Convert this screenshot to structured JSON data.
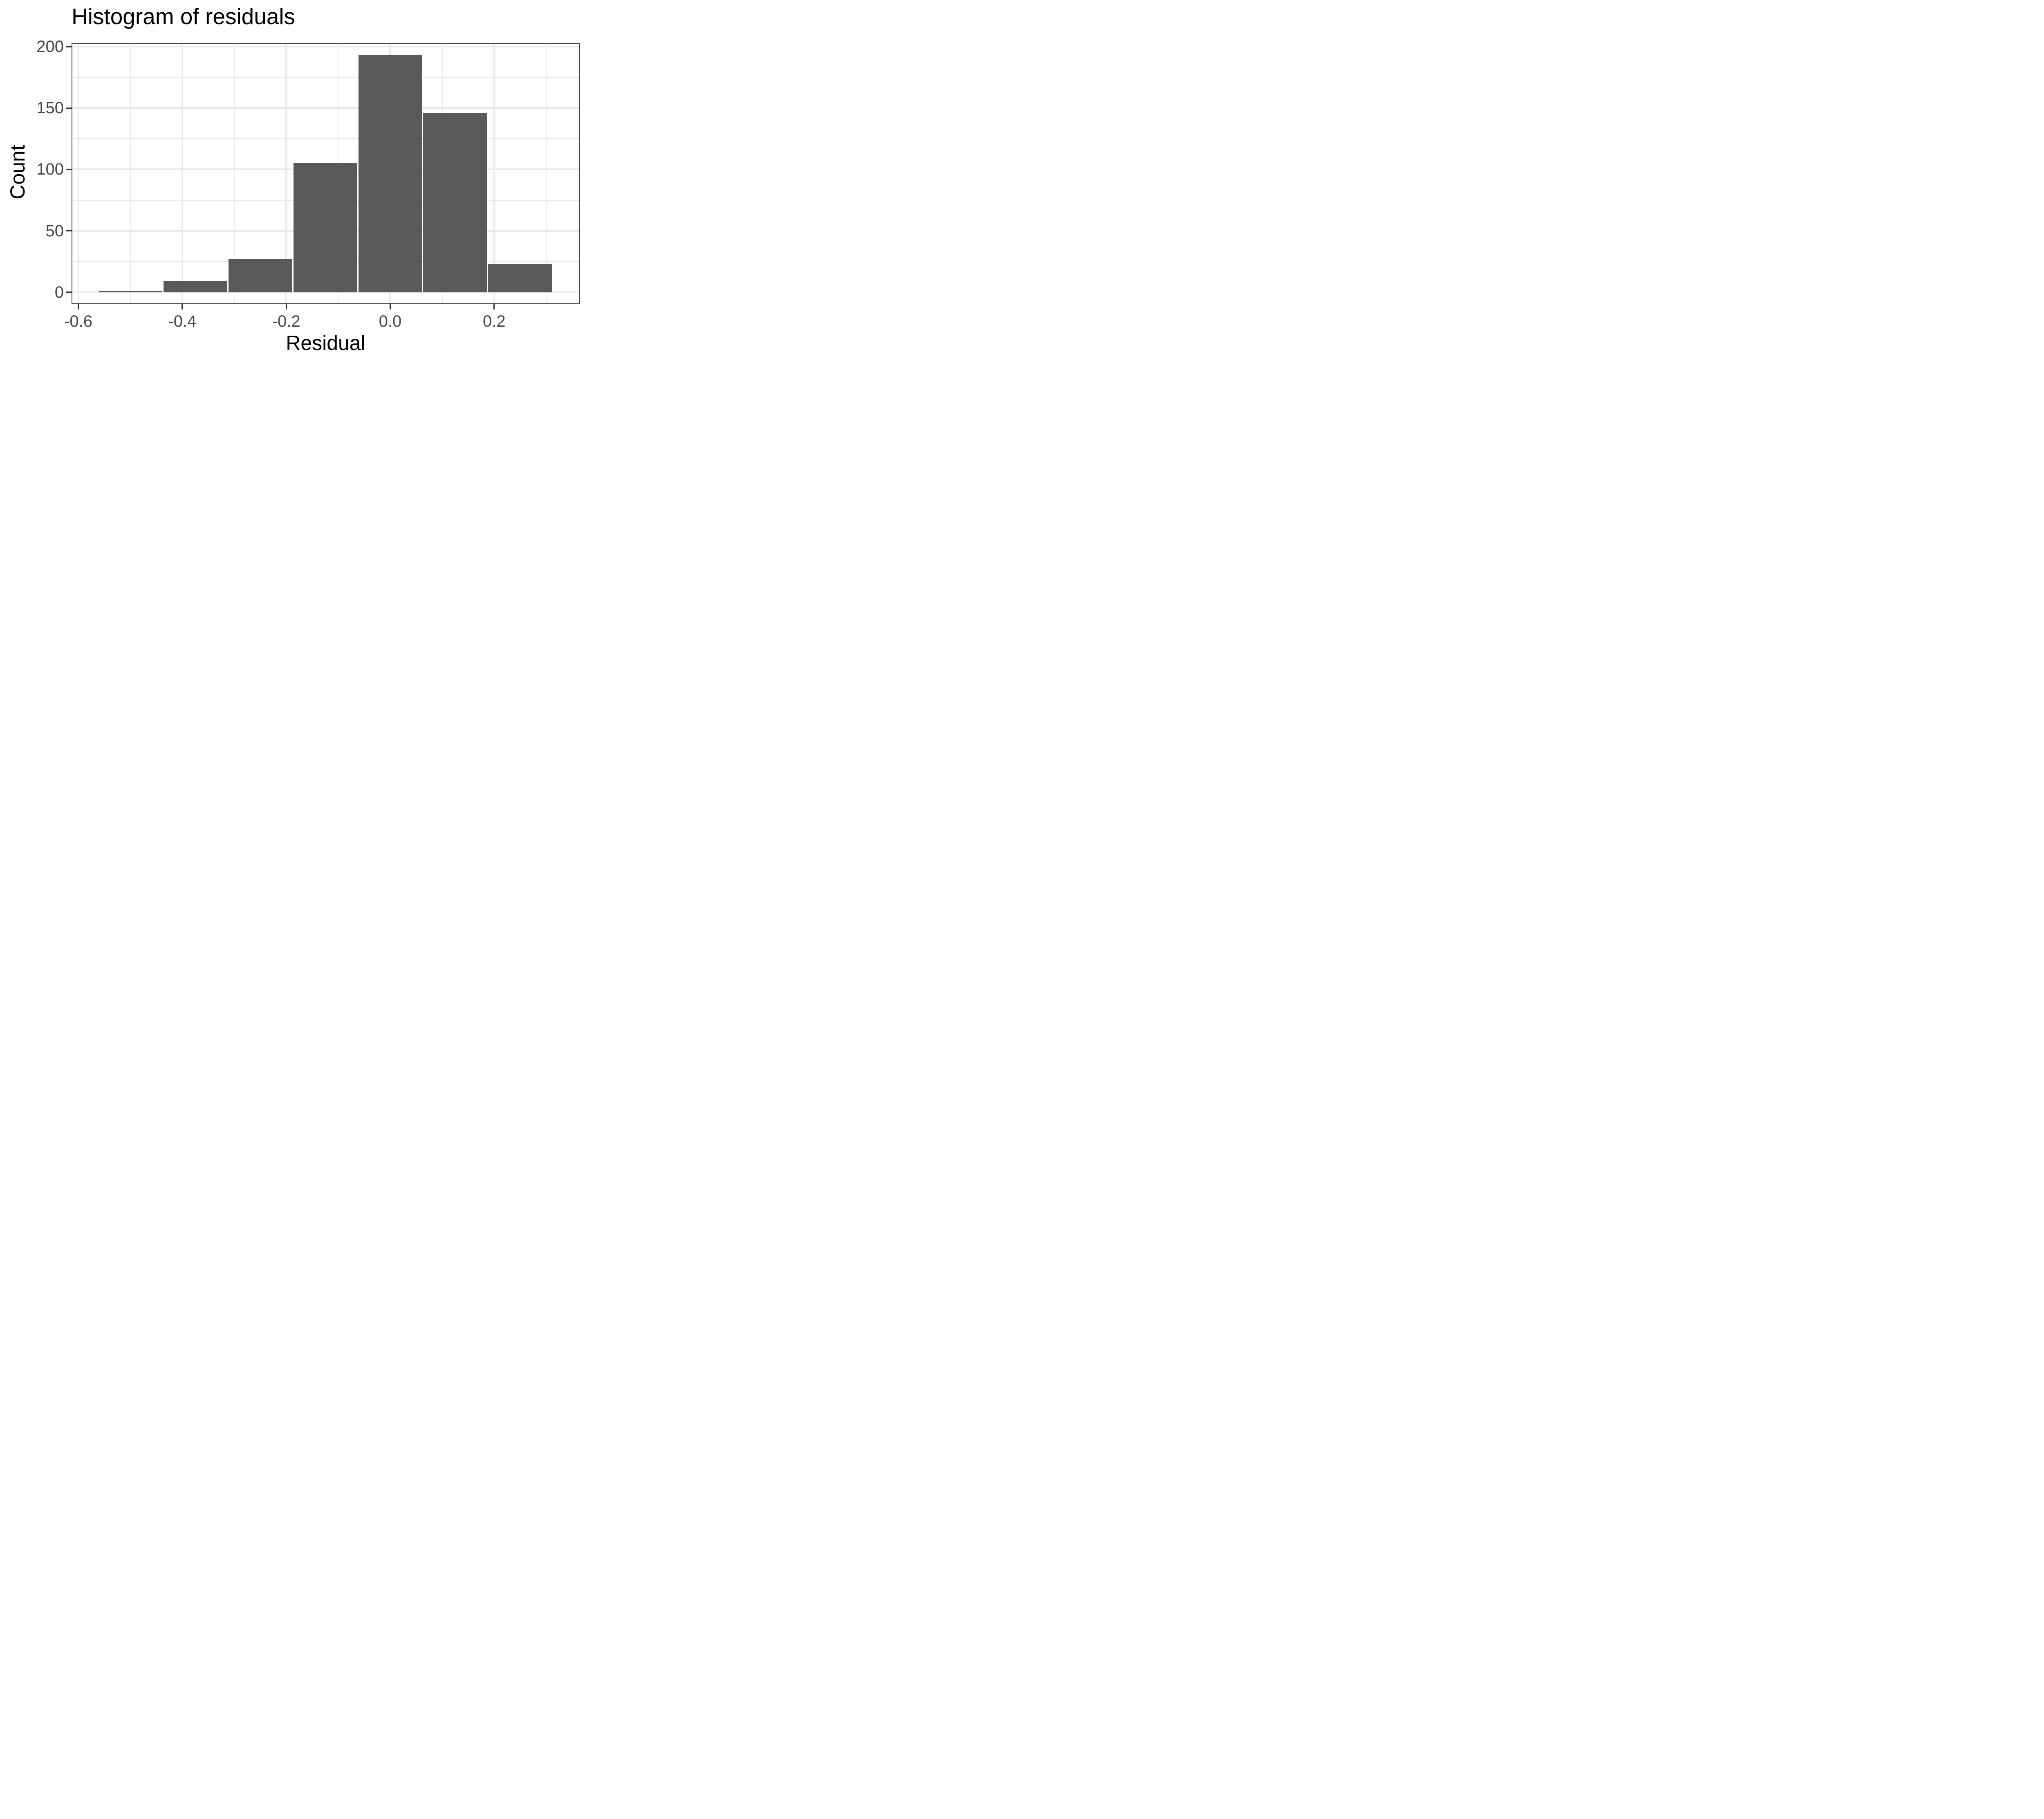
{
  "title": "Histogram of residuals",
  "colors": {
    "bar_fill": "#595959",
    "panel_border": "#333333",
    "grid": "#e9e9e9",
    "tick_label": "#474747",
    "title_text": "#000000",
    "background": "#ffffff"
  },
  "chart_data": {
    "type": "bar",
    "subtype": "histogram",
    "title": "Histogram of residuals",
    "xlabel": "Residual",
    "ylabel": "Count",
    "bin_width": 0.125,
    "bin_centers": [
      -0.5,
      -0.375,
      -0.25,
      -0.125,
      0.0,
      0.125,
      0.25
    ],
    "bin_edges": [
      -0.5625,
      -0.4375,
      -0.3125,
      -0.1875,
      -0.0625,
      0.0625,
      0.1875,
      0.3125
    ],
    "values": [
      1,
      9,
      27,
      105,
      193,
      146,
      23
    ],
    "xlim": [
      -0.613,
      0.3645
    ],
    "ylim": [
      -9.7,
      202.7
    ],
    "x_tick_values": [
      -0.6,
      -0.4,
      -0.2,
      0.0,
      0.2
    ],
    "x_tick_labels": [
      "-0.6",
      "-0.4",
      "-0.2",
      "0.0",
      "0.2"
    ],
    "y_tick_values": [
      0,
      50,
      100,
      150,
      200
    ],
    "y_tick_labels": [
      "0",
      "50",
      "100",
      "150",
      "200"
    ],
    "x_minor_gridlines": [
      -0.5,
      -0.3,
      -0.1,
      0.1,
      0.3
    ],
    "y_minor_gridlines": [
      25,
      75,
      125,
      175
    ],
    "grid": true,
    "legend": false
  }
}
